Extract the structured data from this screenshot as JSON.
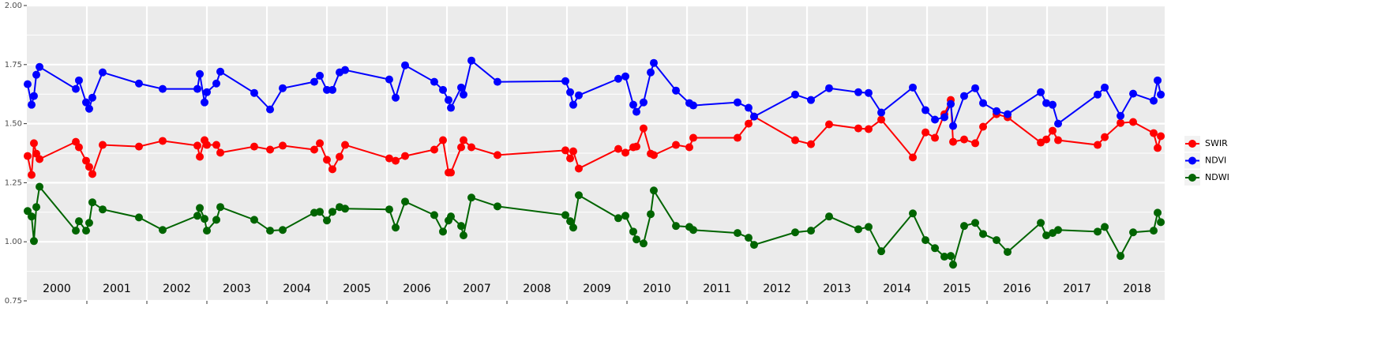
{
  "chart_data": {
    "type": "line",
    "x": [
      2000.013,
      2000.079,
      2000.118,
      2000.158,
      2000.211,
      2000.816,
      2000.868,
      2000.987,
      2001.039,
      2001.092,
      2001.263,
      2001.868,
      2002.263,
      2002.842,
      2002.882,
      2002.961,
      2003.0,
      2003.158,
      2003.224,
      2003.789,
      2004.053,
      2004.263,
      2004.789,
      2004.882,
      2005.0,
      2005.092,
      2005.211,
      2005.303,
      2006.039,
      2006.145,
      2006.303,
      2006.789,
      2006.934,
      2007.026,
      2007.066,
      2007.237,
      2007.276,
      2007.408,
      2007.842,
      2008.974,
      2009.053,
      2009.105,
      2009.197,
      2009.855,
      2009.974,
      2010.105,
      2010.158,
      2010.276,
      2010.395,
      2010.447,
      2010.816,
      2011.039,
      2011.105,
      2011.842,
      2012.026,
      2012.118,
      2012.803,
      2013.066,
      2013.368,
      2013.855,
      2014.026,
      2014.237,
      2014.763,
      2014.974,
      2015.132,
      2015.289,
      2015.395,
      2015.434,
      2015.618,
      2015.803,
      2015.934,
      2016.158,
      2016.342,
      2016.895,
      2016.987,
      2017.092,
      2017.184,
      2017.842,
      2017.961,
      2018.224,
      2018.434,
      2018.776,
      2018.842,
      2018.895
    ],
    "series": [
      {
        "name": "SWIR",
        "color": "#ff0000",
        "values": [
          1.363,
          1.283,
          1.417,
          1.373,
          1.35,
          1.423,
          1.4,
          1.343,
          1.317,
          1.287,
          1.41,
          1.403,
          1.427,
          1.407,
          1.36,
          1.43,
          1.41,
          1.41,
          1.377,
          1.403,
          1.39,
          1.407,
          1.39,
          1.417,
          1.347,
          1.307,
          1.36,
          1.41,
          1.353,
          1.343,
          1.363,
          1.39,
          1.43,
          1.293,
          1.293,
          1.4,
          1.43,
          1.4,
          1.367,
          1.387,
          1.353,
          1.383,
          1.31,
          1.393,
          1.377,
          1.4,
          1.403,
          1.48,
          1.373,
          1.367,
          1.41,
          1.4,
          1.44,
          1.44,
          1.5,
          1.53,
          1.43,
          1.413,
          1.497,
          1.48,
          1.477,
          1.517,
          1.357,
          1.463,
          1.44,
          1.54,
          1.6,
          1.423,
          1.433,
          1.417,
          1.487,
          1.54,
          1.527,
          1.42,
          1.433,
          1.47,
          1.43,
          1.41,
          1.443,
          1.503,
          1.507,
          1.46,
          1.397,
          1.447
        ]
      },
      {
        "name": "NDVI",
        "color": "#0000ff",
        "values": [
          1.667,
          1.58,
          1.617,
          1.707,
          1.74,
          1.647,
          1.683,
          1.59,
          1.563,
          1.61,
          1.717,
          1.67,
          1.647,
          1.647,
          1.71,
          1.59,
          1.633,
          1.67,
          1.72,
          1.63,
          1.56,
          1.65,
          1.677,
          1.703,
          1.643,
          1.643,
          1.717,
          1.727,
          1.687,
          1.61,
          1.747,
          1.677,
          1.643,
          1.6,
          1.567,
          1.653,
          1.623,
          1.767,
          1.677,
          1.68,
          1.633,
          1.58,
          1.62,
          1.69,
          1.7,
          1.58,
          1.55,
          1.59,
          1.717,
          1.757,
          1.64,
          1.587,
          1.577,
          1.59,
          1.567,
          1.53,
          1.623,
          1.6,
          1.65,
          1.633,
          1.63,
          1.547,
          1.653,
          1.557,
          1.517,
          1.527,
          1.583,
          1.49,
          1.617,
          1.65,
          1.587,
          1.553,
          1.54,
          1.633,
          1.587,
          1.58,
          1.5,
          1.623,
          1.653,
          1.533,
          1.627,
          1.597,
          1.683,
          1.623
        ]
      },
      {
        "name": "NDWI",
        "color": "#006400",
        "values": [
          1.13,
          1.107,
          1.003,
          1.147,
          1.233,
          1.047,
          1.087,
          1.047,
          1.08,
          1.167,
          1.137,
          1.103,
          1.05,
          1.11,
          1.143,
          1.097,
          1.047,
          1.093,
          1.147,
          1.093,
          1.047,
          1.05,
          1.123,
          1.127,
          1.09,
          1.127,
          1.147,
          1.14,
          1.137,
          1.06,
          1.17,
          1.113,
          1.043,
          1.09,
          1.107,
          1.067,
          1.027,
          1.187,
          1.15,
          1.113,
          1.087,
          1.06,
          1.197,
          1.1,
          1.11,
          1.043,
          1.01,
          0.993,
          1.117,
          1.217,
          1.067,
          1.063,
          1.05,
          1.037,
          1.017,
          0.987,
          1.04,
          1.047,
          1.107,
          1.053,
          1.063,
          0.96,
          1.12,
          1.007,
          0.973,
          0.937,
          0.94,
          0.903,
          1.067,
          1.08,
          1.033,
          1.007,
          0.957,
          1.08,
          1.027,
          1.037,
          1.05,
          1.043,
          1.063,
          0.94,
          1.04,
          1.047,
          1.123,
          1.083
        ]
      }
    ],
    "xlim": [
      2000,
      2018.96
    ],
    "xticks": [
      2001,
      2002,
      2003,
      2004,
      2005,
      2006,
      2007,
      2008,
      2009,
      2010,
      2011,
      2012,
      2013,
      2014,
      2015,
      2016,
      2017,
      2018
    ],
    "ylim": [
      0.75,
      2.0
    ],
    "yticks": [
      0.75,
      {
        "value": 1.0,
        "label": "1.00"
      },
      1.25,
      {
        "value": 1.5,
        "label": "1.50"
      },
      1.75,
      {
        "value": 2.0,
        "label": "2.00"
      }
    ],
    "yminor": [
      0.875,
      1.125,
      1.375,
      1.625,
      1.875
    ],
    "grid": true,
    "legend": "right",
    "year_labels": {
      "y": 0.8,
      "items": [
        {
          "x": 2000.5,
          "label": "2000"
        },
        {
          "x": 2001.5,
          "label": "2001"
        },
        {
          "x": 2002.5,
          "label": "2002"
        },
        {
          "x": 2003.5,
          "label": "2003"
        },
        {
          "x": 2004.5,
          "label": "2004"
        },
        {
          "x": 2005.5,
          "label": "2005"
        },
        {
          "x": 2006.5,
          "label": "2006"
        },
        {
          "x": 2007.5,
          "label": "2007"
        },
        {
          "x": 2008.5,
          "label": "2008"
        },
        {
          "x": 2009.5,
          "label": "2009"
        },
        {
          "x": 2010.5,
          "label": "2010"
        },
        {
          "x": 2011.5,
          "label": "2011"
        },
        {
          "x": 2012.5,
          "label": "2012"
        },
        {
          "x": 2013.5,
          "label": "2013"
        },
        {
          "x": 2014.5,
          "label": "2014"
        },
        {
          "x": 2015.5,
          "label": "2015"
        },
        {
          "x": 2016.5,
          "label": "2016"
        },
        {
          "x": 2017.5,
          "label": "2017"
        },
        {
          "x": 2018.5,
          "label": "2018"
        }
      ]
    }
  }
}
